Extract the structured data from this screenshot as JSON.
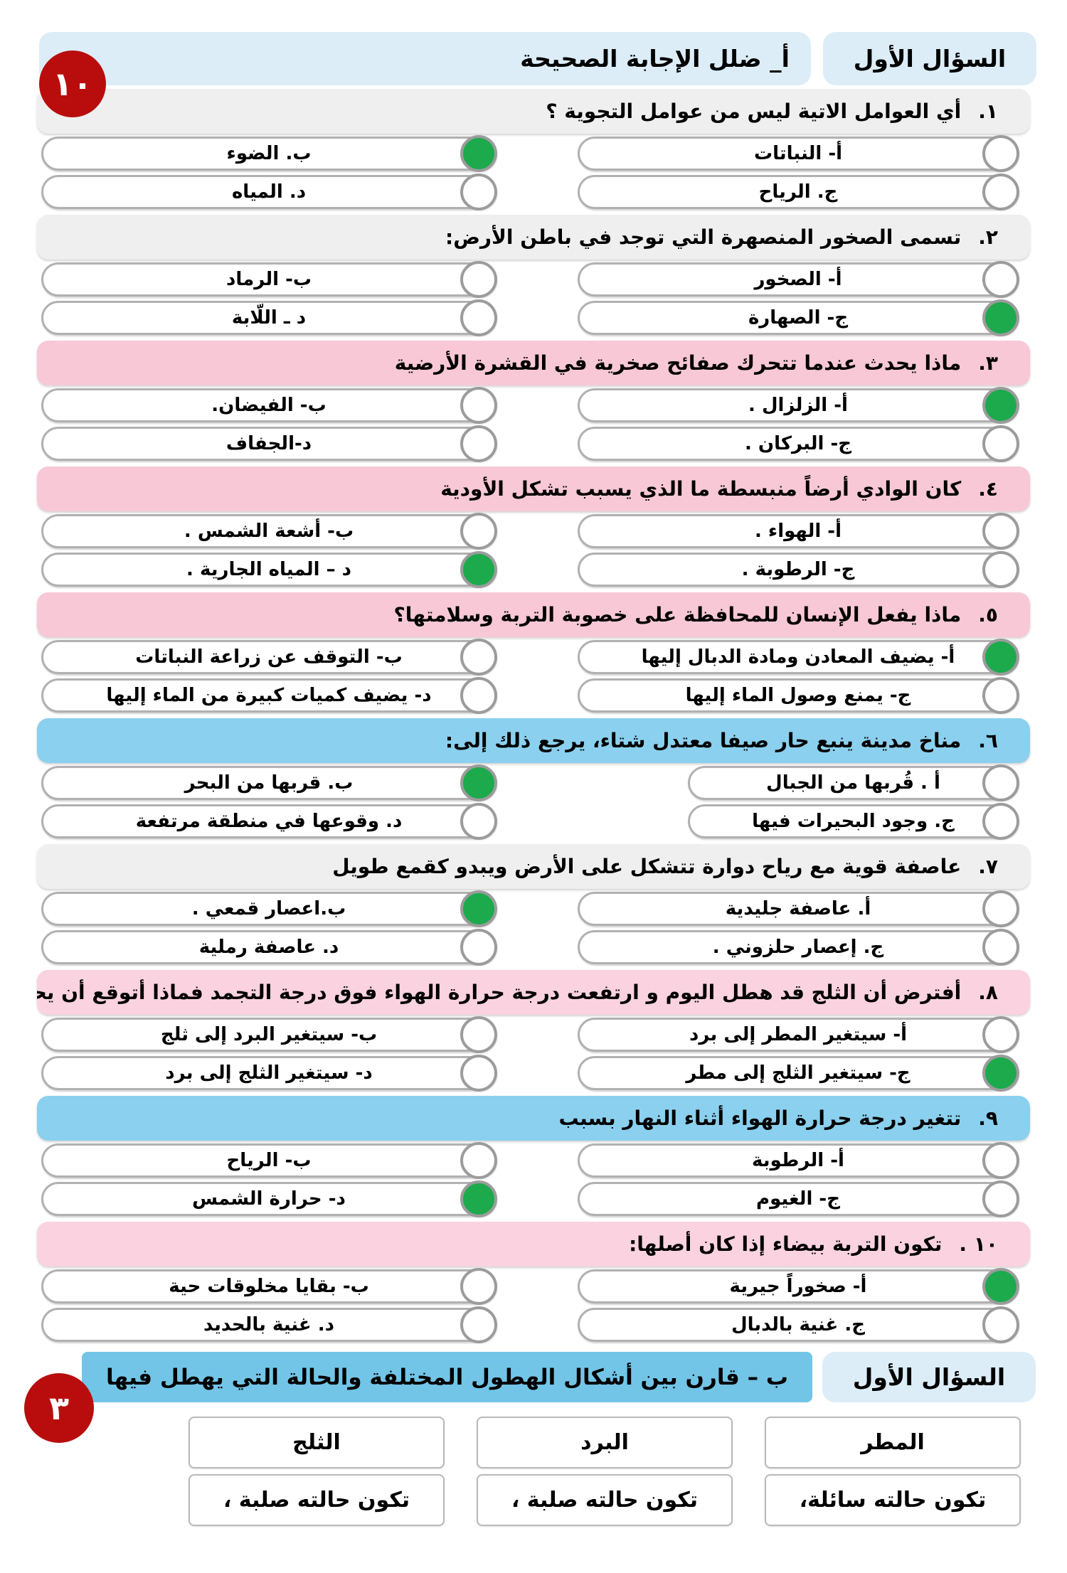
{
  "colors": {
    "gray": "#efefef",
    "pink": "#f8c8d6",
    "pink_light": "#fbd2e0",
    "sky": "#8bd0ee",
    "header_chip": "#dcedf8",
    "part_b_bar": "#72c5e7",
    "green": "#1caa4d",
    "red": "#b90d0d"
  },
  "part_a": {
    "section_label": "السؤال الأول",
    "instruction": "أ_ ضلل الإجابة الصحيحة",
    "score_badge": "١٠",
    "questions": [
      {
        "number": "١.",
        "text": "أي العوامل الاتية ليس من عوامل التجوية ؟",
        "theme": "gray",
        "narrow_right": false,
        "options": [
          {
            "key": "a",
            "label": "أ- النباتات",
            "selected": false
          },
          {
            "key": "b",
            "label": "ب. الضوء",
            "selected": true
          },
          {
            "key": "c",
            "label": "ج. الرياح",
            "selected": false
          },
          {
            "key": "d",
            "label": "د. المياه",
            "selected": false
          }
        ]
      },
      {
        "number": "٢.",
        "text": "تسمى الصخور المنصهرة التي توجد في باطن الأرض:",
        "theme": "gray",
        "narrow_right": false,
        "options": [
          {
            "key": "a",
            "label": "أ- الصخور",
            "selected": false
          },
          {
            "key": "b",
            "label": "ب- الرماد",
            "selected": false
          },
          {
            "key": "c",
            "label": "ج- الصهارة",
            "selected": true
          },
          {
            "key": "d",
            "label": "د ـ اللّابة",
            "selected": false
          }
        ]
      },
      {
        "number": "٣.",
        "text": "ماذا يحدث عندما تتحرك صفائح صخرية في القشرة الأرضية",
        "theme": "pink",
        "narrow_right": false,
        "options": [
          {
            "key": "a",
            "label": "أ- الزلزال .",
            "selected": true
          },
          {
            "key": "b",
            "label": "ب- الفيضان.",
            "selected": false
          },
          {
            "key": "c",
            "label": "ج- البركان .",
            "selected": false
          },
          {
            "key": "d",
            "label": "د-الجفاف",
            "selected": false
          }
        ]
      },
      {
        "number": "٤.",
        "text": "كان الوادي أرضاً منبسطة ما الذي يسبب تشكل الأودية",
        "theme": "pink",
        "narrow_right": false,
        "options": [
          {
            "key": "a",
            "label": "أ- الهواء .",
            "selected": false
          },
          {
            "key": "b",
            "label": "ب- أشعة الشمس .",
            "selected": false
          },
          {
            "key": "c",
            "label": "ج- الرطوبة .",
            "selected": false
          },
          {
            "key": "d",
            "label": "د – المياه الجارية .",
            "selected": true
          }
        ]
      },
      {
        "number": "٥.",
        "text": "ماذا يفعل الإنسان للمحافظة على خصوبة التربة وسلامتها؟",
        "theme": "pink",
        "narrow_right": false,
        "options": [
          {
            "key": "a",
            "label": "أ- يضيف المعادن ومادة الدبال إليها",
            "selected": true
          },
          {
            "key": "b",
            "label": "ب- التوقف عن زراعة النباتات",
            "selected": false
          },
          {
            "key": "c",
            "label": "ج- يمنع وصول الماء إليها",
            "selected": false
          },
          {
            "key": "d",
            "label": "د- يضيف كميات كبيرة من الماء إليها",
            "selected": false
          }
        ]
      },
      {
        "number": "٦.",
        "text": "مناخ مدينة ينبع حار صيفا معتدل شتاء، يرجع ذلك إلى:",
        "theme": "sky",
        "narrow_right": true,
        "options": [
          {
            "key": "a",
            "label": "أ . قُربها من الجبال",
            "selected": false
          },
          {
            "key": "b",
            "label": "ب. قربها من البحر",
            "selected": true
          },
          {
            "key": "c",
            "label": "ج. وجود البحيرات فيها",
            "selected": false
          },
          {
            "key": "d",
            "label": "د. وقوعها في منطقة مرتفعة",
            "selected": false
          }
        ]
      },
      {
        "number": "٧.",
        "text": "عاصفة قوية مع رياح دوارة تتشكل على الأرض  ويبدو كقمع طويل",
        "theme": "gray",
        "narrow_right": false,
        "options": [
          {
            "key": "a",
            "label": "أ. عاصفة جليدية",
            "selected": false
          },
          {
            "key": "b",
            "label": "ب.اعصار قمعي .",
            "selected": true
          },
          {
            "key": "c",
            "label": "ج. إعصار حلزوني .",
            "selected": false
          },
          {
            "key": "d",
            "label": "د. عاصفة رملية",
            "selected": false
          }
        ]
      },
      {
        "number": "٨.",
        "text": "أفترض أن الثلج قد هطل اليوم و ارتفعت درجة حرارة الهواء فوق درجة التجمد فماذا أتوقع أن يحدث",
        "theme": "pink_light",
        "narrow_right": false,
        "options": [
          {
            "key": "a",
            "label": "أ- سيتغير المطر إلى برد",
            "selected": false
          },
          {
            "key": "b",
            "label": "ب- سيتغير البرد إلى ثلج",
            "selected": false
          },
          {
            "key": "c",
            "label": "ج- سيتغير الثلج إلى مطر",
            "selected": true
          },
          {
            "key": "d",
            "label": "د- سيتغير الثلج  إلى برد",
            "selected": false
          }
        ]
      },
      {
        "number": "٩.",
        "text": "تتغير درجة حرارة الهواء أثناء النهار بسبب",
        "theme": "sky",
        "narrow_right": false,
        "options": [
          {
            "key": "a",
            "label": "أ- الرطوبة",
            "selected": false
          },
          {
            "key": "b",
            "label": "ب- الرياح",
            "selected": false
          },
          {
            "key": "c",
            "label": "ج- الغيوم",
            "selected": false
          },
          {
            "key": "d",
            "label": "د- حرارة الشمس",
            "selected": true
          }
        ]
      },
      {
        "number": "١٠ .",
        "text": "تكون التربة بيضاء إذا كان أصلها:",
        "theme": "pink_light",
        "narrow_right": false,
        "options": [
          {
            "key": "a",
            "label": "أ- صخوراً جيرية",
            "selected": true
          },
          {
            "key": "b",
            "label": "ب- بقايا مخلوقات حية",
            "selected": false
          },
          {
            "key": "c",
            "label": "ج. غنية بالدبال",
            "selected": false
          },
          {
            "key": "d",
            "label": "د. غنية بالحديد",
            "selected": false
          }
        ]
      }
    ]
  },
  "part_b": {
    "section_label": "السؤال الأول",
    "instruction": "ب – قارن بين أشكال الهطول المختلفة والحالة التي يهطل فيها",
    "score_badge": "٣",
    "table": {
      "columns": [
        {
          "key": "rain",
          "header": "المطر",
          "value": "تكون حالته سائلة،"
        },
        {
          "key": "hail",
          "header": "البرد",
          "value": "تكون حالته صلبة ،"
        },
        {
          "key": "snow",
          "header": "الثلج",
          "value": "تكون حالته صلبة ،"
        }
      ]
    }
  }
}
